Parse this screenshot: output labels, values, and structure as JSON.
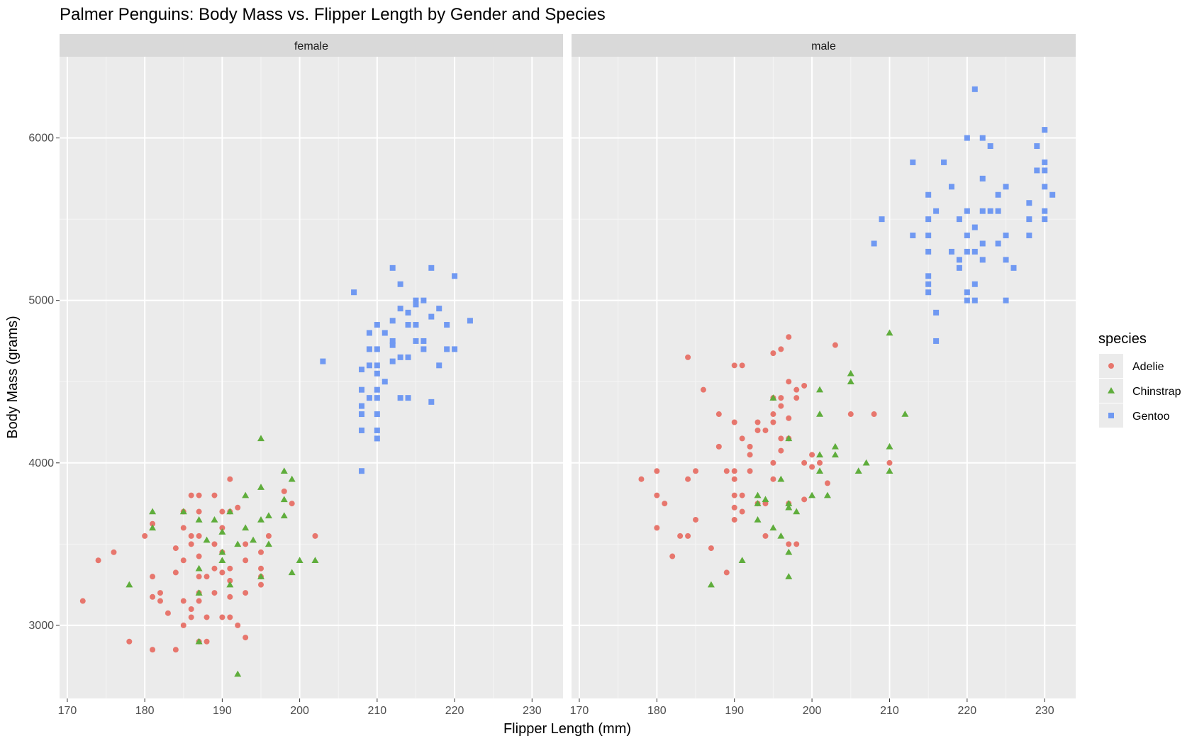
{
  "chart_data": {
    "type": "scatter",
    "title": "Palmer Penguins: Body Mass vs. Flipper Length by Gender and Species",
    "xlabel": "Flipper Length (mm)",
    "ylabel": "Body Mass (grams)",
    "xlim": [
      169,
      234
    ],
    "ylim": [
      2550,
      6500
    ],
    "x_ticks": [
      170,
      180,
      190,
      200,
      210,
      220,
      230
    ],
    "y_ticks": [
      3000,
      4000,
      5000,
      6000
    ],
    "grid": true,
    "legend": {
      "title": "species",
      "position": "right"
    },
    "facets": [
      "female",
      "male"
    ],
    "series": [
      {
        "name": "Adelie",
        "color": "#e7766d",
        "marker": "circle"
      },
      {
        "name": "Chinstrap",
        "color": "#5fad3c",
        "marker": "triangle"
      },
      {
        "name": "Gentoo",
        "color": "#7099f2",
        "marker": "square"
      }
    ],
    "points": {
      "female": {
        "Adelie": [
          [
            172,
            3150
          ],
          [
            174,
            3400
          ],
          [
            176,
            3450
          ],
          [
            178,
            2900
          ],
          [
            180,
            3550
          ],
          [
            181,
            2850
          ],
          [
            181,
            3175
          ],
          [
            181,
            3300
          ],
          [
            181,
            3625
          ],
          [
            182,
            3150
          ],
          [
            182,
            3200
          ],
          [
            183,
            3075
          ],
          [
            184,
            2850
          ],
          [
            184,
            3325
          ],
          [
            184,
            3475
          ],
          [
            185,
            3000
          ],
          [
            185,
            3150
          ],
          [
            185,
            3400
          ],
          [
            185,
            3600
          ],
          [
            185,
            3700
          ],
          [
            186,
            3050
          ],
          [
            186,
            3100
          ],
          [
            186,
            3500
          ],
          [
            186,
            3550
          ],
          [
            186,
            3800
          ],
          [
            187,
            2900
          ],
          [
            187,
            3150
          ],
          [
            187,
            3200
          ],
          [
            187,
            3300
          ],
          [
            187,
            3425
          ],
          [
            187,
            3550
          ],
          [
            187,
            3700
          ],
          [
            187,
            3800
          ],
          [
            188,
            2900
          ],
          [
            188,
            3050
          ],
          [
            188,
            3300
          ],
          [
            189,
            3200
          ],
          [
            189,
            3350
          ],
          [
            189,
            3500
          ],
          [
            189,
            3800
          ],
          [
            190,
            3050
          ],
          [
            190,
            3325
          ],
          [
            190,
            3450
          ],
          [
            190,
            3600
          ],
          [
            190,
            3700
          ],
          [
            191,
            3050
          ],
          [
            191,
            3175
          ],
          [
            191,
            3275
          ],
          [
            191,
            3350
          ],
          [
            191,
            3700
          ],
          [
            191,
            3900
          ],
          [
            192,
            3000
          ],
          [
            192,
            3725
          ],
          [
            193,
            2925
          ],
          [
            193,
            3200
          ],
          [
            193,
            3400
          ],
          [
            193,
            3500
          ],
          [
            195,
            3250
          ],
          [
            195,
            3300
          ],
          [
            195,
            3350
          ],
          [
            195,
            3450
          ],
          [
            196,
            3550
          ],
          [
            198,
            3825
          ],
          [
            199,
            3750
          ],
          [
            202,
            3550
          ]
        ],
        "Chinstrap": [
          [
            178,
            3250
          ],
          [
            181,
            3600
          ],
          [
            181,
            3700
          ],
          [
            185,
            3700
          ],
          [
            187,
            2900
          ],
          [
            187,
            3200
          ],
          [
            187,
            3350
          ],
          [
            187,
            3650
          ],
          [
            188,
            3525
          ],
          [
            189,
            3650
          ],
          [
            190,
            3400
          ],
          [
            190,
            3450
          ],
          [
            190,
            3575
          ],
          [
            191,
            3250
          ],
          [
            191,
            3700
          ],
          [
            192,
            2700
          ],
          [
            192,
            3500
          ],
          [
            193,
            3600
          ],
          [
            193,
            3800
          ],
          [
            194,
            3525
          ],
          [
            195,
            3300
          ],
          [
            195,
            3650
          ],
          [
            195,
            3850
          ],
          [
            195,
            4150
          ],
          [
            196,
            3500
          ],
          [
            196,
            3675
          ],
          [
            198,
            3675
          ],
          [
            198,
            3775
          ],
          [
            198,
            3950
          ],
          [
            199,
            3325
          ],
          [
            199,
            3900
          ],
          [
            200,
            3400
          ],
          [
            202,
            3400
          ]
        ],
        "Gentoo": [
          [
            203,
            4625
          ],
          [
            207,
            5050
          ],
          [
            208,
            3950
          ],
          [
            208,
            4200
          ],
          [
            208,
            4300
          ],
          [
            208,
            4350
          ],
          [
            208,
            4450
          ],
          [
            208,
            4575
          ],
          [
            209,
            4400
          ],
          [
            209,
            4600
          ],
          [
            209,
            4700
          ],
          [
            209,
            4800
          ],
          [
            210,
            4150
          ],
          [
            210,
            4200
          ],
          [
            210,
            4300
          ],
          [
            210,
            4400
          ],
          [
            210,
            4450
          ],
          [
            210,
            4550
          ],
          [
            210,
            4600
          ],
          [
            210,
            4700
          ],
          [
            210,
            4850
          ],
          [
            211,
            4500
          ],
          [
            211,
            4800
          ],
          [
            212,
            4625
          ],
          [
            212,
            4725
          ],
          [
            212,
            4750
          ],
          [
            212,
            4875
          ],
          [
            212,
            5200
          ],
          [
            213,
            4400
          ],
          [
            213,
            4650
          ],
          [
            213,
            4950
          ],
          [
            213,
            5100
          ],
          [
            214,
            4400
          ],
          [
            214,
            4650
          ],
          [
            214,
            4850
          ],
          [
            214,
            4925
          ],
          [
            215,
            4750
          ],
          [
            215,
            4850
          ],
          [
            215,
            4975
          ],
          [
            215,
            5000
          ],
          [
            216,
            4700
          ],
          [
            216,
            4750
          ],
          [
            216,
            5000
          ],
          [
            217,
            4375
          ],
          [
            217,
            4900
          ],
          [
            217,
            5200
          ],
          [
            218,
            4600
          ],
          [
            218,
            4950
          ],
          [
            219,
            4700
          ],
          [
            219,
            4850
          ],
          [
            220,
            4700
          ],
          [
            220,
            5150
          ],
          [
            222,
            4875
          ]
        ]
      },
      "male": {
        "Adelie": [
          [
            178,
            3900
          ],
          [
            180,
            3600
          ],
          [
            180,
            3800
          ],
          [
            180,
            3950
          ],
          [
            181,
            3750
          ],
          [
            182,
            3425
          ],
          [
            183,
            3550
          ],
          [
            184,
            3550
          ],
          [
            184,
            3900
          ],
          [
            184,
            4650
          ],
          [
            185,
            3650
          ],
          [
            185,
            3950
          ],
          [
            186,
            4450
          ],
          [
            187,
            3475
          ],
          [
            188,
            4100
          ],
          [
            188,
            4300
          ],
          [
            189,
            3325
          ],
          [
            189,
            3950
          ],
          [
            190,
            3650
          ],
          [
            190,
            3725
          ],
          [
            190,
            3800
          ],
          [
            190,
            3900
          ],
          [
            190,
            3950
          ],
          [
            190,
            4250
          ],
          [
            190,
            4600
          ],
          [
            191,
            3700
          ],
          [
            191,
            3800
          ],
          [
            191,
            4150
          ],
          [
            191,
            4600
          ],
          [
            192,
            3950
          ],
          [
            192,
            4050
          ],
          [
            192,
            4100
          ],
          [
            193,
            3750
          ],
          [
            193,
            4200
          ],
          [
            193,
            4250
          ],
          [
            194,
            3550
          ],
          [
            194,
            3750
          ],
          [
            194,
            4200
          ],
          [
            195,
            3900
          ],
          [
            195,
            4000
          ],
          [
            195,
            4250
          ],
          [
            195,
            4300
          ],
          [
            195,
            4400
          ],
          [
            195,
            4675
          ],
          [
            196,
            4075
          ],
          [
            196,
            4150
          ],
          [
            196,
            4350
          ],
          [
            196,
            4400
          ],
          [
            196,
            4700
          ],
          [
            197,
            3500
          ],
          [
            197,
            3750
          ],
          [
            197,
            4150
          ],
          [
            197,
            4275
          ],
          [
            197,
            4500
          ],
          [
            197,
            4775
          ],
          [
            198,
            3500
          ],
          [
            198,
            4400
          ],
          [
            198,
            4450
          ],
          [
            199,
            3775
          ],
          [
            199,
            4000
          ],
          [
            199,
            4475
          ],
          [
            200,
            3975
          ],
          [
            200,
            4050
          ],
          [
            201,
            4000
          ],
          [
            202,
            3875
          ],
          [
            203,
            4725
          ],
          [
            205,
            4300
          ],
          [
            208,
            4300
          ],
          [
            210,
            4000
          ]
        ],
        "Chinstrap": [
          [
            187,
            3250
          ],
          [
            191,
            3400
          ],
          [
            193,
            3650
          ],
          [
            193,
            3750
          ],
          [
            193,
            3800
          ],
          [
            194,
            3775
          ],
          [
            195,
            3600
          ],
          [
            195,
            4400
          ],
          [
            196,
            3550
          ],
          [
            196,
            3900
          ],
          [
            197,
            3300
          ],
          [
            197,
            3450
          ],
          [
            197,
            3725
          ],
          [
            197,
            3750
          ],
          [
            197,
            4150
          ],
          [
            198,
            3700
          ],
          [
            200,
            3800
          ],
          [
            201,
            3950
          ],
          [
            201,
            4050
          ],
          [
            201,
            4300
          ],
          [
            201,
            4450
          ],
          [
            202,
            3800
          ],
          [
            203,
            4050
          ],
          [
            203,
            4100
          ],
          [
            205,
            4500
          ],
          [
            205,
            4550
          ],
          [
            206,
            3950
          ],
          [
            207,
            4000
          ],
          [
            210,
            3950
          ],
          [
            210,
            4100
          ],
          [
            210,
            4800
          ],
          [
            212,
            4300
          ]
        ],
        "Gentoo": [
          [
            208,
            5350
          ],
          [
            209,
            5500
          ],
          [
            213,
            5400
          ],
          [
            213,
            5850
          ],
          [
            215,
            5050
          ],
          [
            215,
            5100
          ],
          [
            215,
            5150
          ],
          [
            215,
            5300
          ],
          [
            215,
            5400
          ],
          [
            215,
            5500
          ],
          [
            215,
            5650
          ],
          [
            216,
            4750
          ],
          [
            216,
            4925
          ],
          [
            216,
            5550
          ],
          [
            217,
            5850
          ],
          [
            218,
            5300
          ],
          [
            218,
            5700
          ],
          [
            219,
            5200
          ],
          [
            219,
            5250
          ],
          [
            219,
            5500
          ],
          [
            220,
            5000
          ],
          [
            220,
            5050
          ],
          [
            220,
            5300
          ],
          [
            220,
            5400
          ],
          [
            220,
            5550
          ],
          [
            220,
            6000
          ],
          [
            221,
            5000
          ],
          [
            221,
            5100
          ],
          [
            221,
            5300
          ],
          [
            221,
            5450
          ],
          [
            221,
            6300
          ],
          [
            222,
            5250
          ],
          [
            222,
            5350
          ],
          [
            222,
            5550
          ],
          [
            222,
            5750
          ],
          [
            222,
            6000
          ],
          [
            223,
            5550
          ],
          [
            223,
            5950
          ],
          [
            224,
            5350
          ],
          [
            224,
            5550
          ],
          [
            224,
            5650
          ],
          [
            225,
            5000
          ],
          [
            225,
            5250
          ],
          [
            225,
            5400
          ],
          [
            225,
            5700
          ],
          [
            226,
            5200
          ],
          [
            228,
            5400
          ],
          [
            228,
            5500
          ],
          [
            228,
            5600
          ],
          [
            229,
            5800
          ],
          [
            229,
            5950
          ],
          [
            230,
            5500
          ],
          [
            230,
            5550
          ],
          [
            230,
            5700
          ],
          [
            230,
            5800
          ],
          [
            230,
            5850
          ],
          [
            230,
            6050
          ],
          [
            231,
            5650
          ]
        ]
      }
    }
  }
}
